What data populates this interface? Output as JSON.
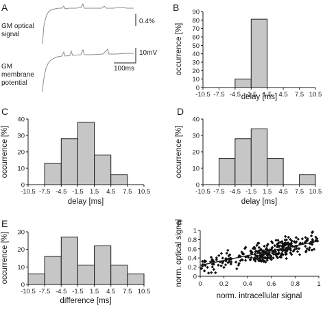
{
  "panels": {
    "a": {
      "letter": "A",
      "optical_label": [
        "GM optical",
        "signal"
      ],
      "membrane_label": [
        "GM",
        "membrane",
        "potential"
      ],
      "scale_optical": "0.4%",
      "scale_voltage": "10mV",
      "scale_time": "100ms"
    }
  },
  "chart_data": [
    {
      "id": "B",
      "type": "bar",
      "letter": "B",
      "categories": [
        "-10.5",
        "-7.5",
        "-4.5",
        "-1.5",
        "1.5",
        "4.5",
        "7.5",
        "10.5"
      ],
      "bins": [
        [
          -4.5,
          -1.5,
          10
        ],
        [
          -1.5,
          1.5,
          81
        ]
      ],
      "xlim": [
        -10.5,
        10.5
      ],
      "ylim": [
        0,
        90
      ],
      "yticks": [
        "0",
        "10",
        "20",
        "30",
        "40",
        "50",
        "60",
        "70",
        "80",
        "90"
      ],
      "xlabel": "delay [ms]",
      "ylabel": "occurrence [%]"
    },
    {
      "id": "C",
      "type": "bar",
      "letter": "C",
      "categories": [
        "-10.5",
        "-7.5",
        "-4.5",
        "-1.5",
        "1.5",
        "4.5",
        "7.5",
        "10.5"
      ],
      "bins": [
        [
          -7.5,
          -4.5,
          13
        ],
        [
          -4.5,
          -1.5,
          28
        ],
        [
          -1.5,
          1.5,
          38
        ],
        [
          1.5,
          4.5,
          18
        ],
        [
          4.5,
          7.5,
          6
        ]
      ],
      "xlim": [
        -10.5,
        10.5
      ],
      "ylim": [
        0,
        40
      ],
      "yticks": [
        "0",
        "10",
        "20",
        "30",
        "40"
      ],
      "xlabel": "delay [ms]",
      "ylabel": "occurrence [%]"
    },
    {
      "id": "D",
      "type": "bar",
      "letter": "D",
      "categories": [
        "-10.5",
        "-7.5",
        "-4.5",
        "-1.5",
        "1.5",
        "4.5",
        "7.5",
        "10.5"
      ],
      "bins": [
        [
          -7.5,
          -4.5,
          16
        ],
        [
          -4.5,
          -1.5,
          28
        ],
        [
          -1.5,
          1.5,
          34
        ],
        [
          1.5,
          4.5,
          16
        ],
        [
          7.5,
          10.5,
          6
        ]
      ],
      "xlim": [
        -10.5,
        10.5
      ],
      "ylim": [
        0,
        40
      ],
      "yticks": [
        "0",
        "10",
        "20",
        "30",
        "40"
      ],
      "xlabel": "delay [ms]",
      "ylabel": "occurrence [%]"
    },
    {
      "id": "E",
      "type": "bar",
      "letter": "E",
      "categories": [
        "-10.5",
        "-7.5",
        "-4.5",
        "-1.5",
        "1.5",
        "4.5",
        "7.5",
        "10.5"
      ],
      "bins": [
        [
          -10.5,
          -7.5,
          6
        ],
        [
          -7.5,
          -4.5,
          16
        ],
        [
          -4.5,
          -1.5,
          27
        ],
        [
          -1.5,
          1.5,
          11
        ],
        [
          1.5,
          4.5,
          22
        ],
        [
          4.5,
          7.5,
          11
        ],
        [
          7.5,
          10.5,
          6
        ]
      ],
      "xlim": [
        -10.5,
        10.5
      ],
      "ylim": [
        0,
        30
      ],
      "yticks": [
        "0",
        "10",
        "20",
        "30"
      ],
      "xlabel": "difference [ms]",
      "ylabel": "occurrence [%]"
    },
    {
      "id": "F",
      "type": "scatter",
      "letter": "F",
      "xticks": [
        "0",
        "0.2",
        "0.4",
        "0.6",
        "0.8",
        "1"
      ],
      "yticks": [
        "0",
        "0.2",
        "0.4",
        "0.6",
        "0.8",
        "1"
      ],
      "xlim": [
        0,
        1
      ],
      "ylim": [
        0,
        1
      ],
      "xlabel": "norm. intracellular signal",
      "ylabel": "norm. optical signal",
      "fit": {
        "intercept": 0.24,
        "slope": 0.53
      },
      "point_count": 320,
      "x_range": [
        0.0,
        1.0
      ]
    }
  ]
}
